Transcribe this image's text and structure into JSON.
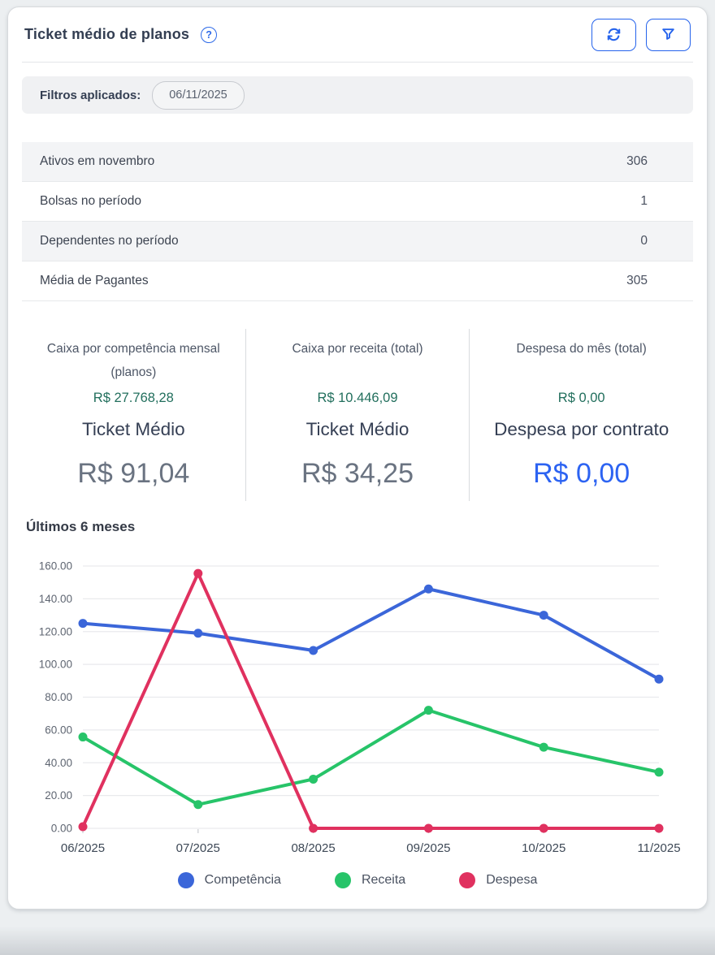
{
  "header": {
    "title": "Ticket médio de planos",
    "help_icon": "question-circle-icon",
    "refresh_button": "refresh-icon",
    "filter_button": "funnel-icon"
  },
  "filters": {
    "label": "Filtros aplicados:",
    "chips": [
      "06/11/2025"
    ]
  },
  "stats": {
    "rows": [
      {
        "label": "Ativos em novembro",
        "value": "306"
      },
      {
        "label": "Bolsas no período",
        "value": "1"
      },
      {
        "label": "Dependentes no período",
        "value": "0"
      },
      {
        "label": "Média de Pagantes",
        "value": "305"
      }
    ]
  },
  "metrics": {
    "columns": [
      {
        "caption": "Caixa por competência mensal (planos)",
        "caption_value": "R$ 27.768,28",
        "title": "Ticket Médio",
        "value": "R$ 91,04",
        "value_color": "#6a7381"
      },
      {
        "caption": "Caixa por receita (total)",
        "caption_value": "R$ 10.446,09",
        "title": "Ticket Médio",
        "value": "R$ 34,25",
        "value_color": "#6a7381"
      },
      {
        "caption": "Despesa do mês (total)",
        "caption_value": "R$ 0,00",
        "title": "Despesa por contrato",
        "value": "R$ 0,00",
        "value_color": "#2c63f2"
      }
    ]
  },
  "chart_section": {
    "heading": "Últimos 6 meses"
  },
  "chart_data": {
    "type": "line",
    "categories": [
      "06/2025",
      "07/2025",
      "08/2025",
      "09/2025",
      "10/2025",
      "11/2025"
    ],
    "series": [
      {
        "name": "Competência",
        "color": "#3b66d9",
        "values": [
          125,
          119,
          108.5,
          146,
          130,
          91.04
        ]
      },
      {
        "name": "Receita",
        "color": "#27c469",
        "values": [
          55.7,
          14.5,
          30,
          72,
          49.5,
          34.25
        ]
      },
      {
        "name": "Despesa",
        "color": "#e0315f",
        "values": [
          1,
          155.5,
          0,
          0,
          0,
          0
        ]
      }
    ],
    "title": "Últimos 6 meses",
    "xlabel": "",
    "ylabel": "",
    "ylim": [
      0,
      160
    ],
    "ytick_step": 20,
    "ytick_decimals": 2,
    "grid": true,
    "legend_position": "bottom"
  },
  "colors": {
    "accent_blue": "#2563ec",
    "caption_value_teal": "#226f5d",
    "big_value_gray": "#6a7381",
    "big_value_blue": "#2c63f2",
    "grid_line": "#e9eaed",
    "axis_text": "#5f6672",
    "x_label_text": "#3d4856"
  }
}
